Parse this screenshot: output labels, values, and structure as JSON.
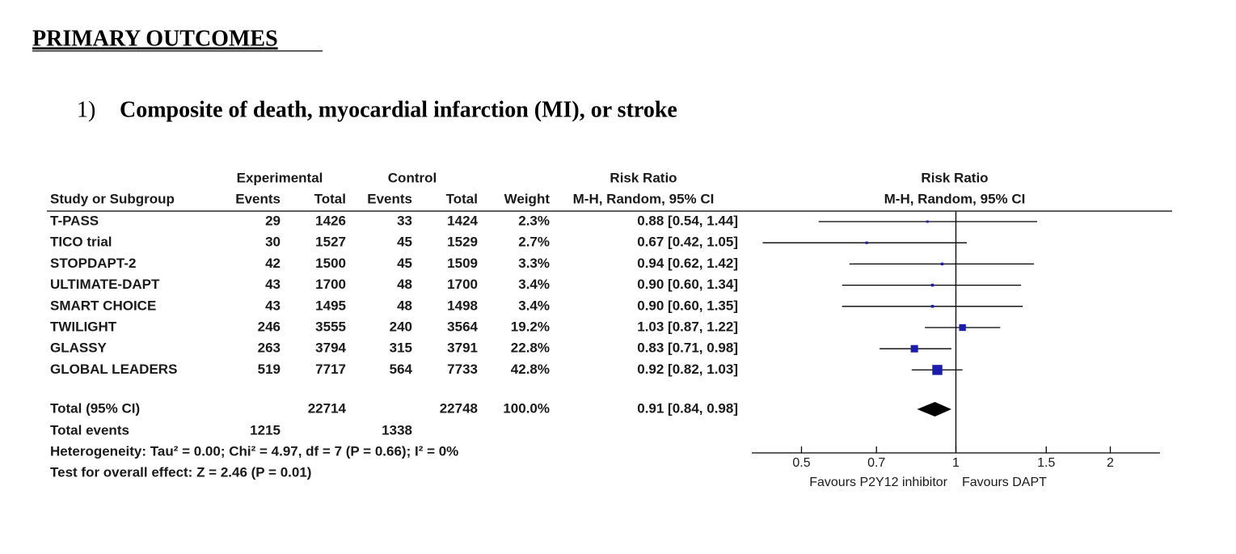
{
  "heading": "PRIMARY OUTCOMES",
  "item_number": "1)",
  "item_title": "Composite of death, myocardial infarction (MI), or stroke",
  "chart_data": {
    "type": "forest",
    "columns": {
      "study": "Study or Subgroup",
      "experimental": "Experimental",
      "control": "Control",
      "exp_events": "Events",
      "exp_total": "Total",
      "ctl_events": "Events",
      "ctl_total": "Total",
      "weight": "Weight",
      "effect": "Risk Ratio",
      "effect_method": "M-H, Random, 95% CI"
    },
    "plot_title": "Risk Ratio",
    "plot_subtitle": "M-H, Random, 95% CI",
    "studies": [
      {
        "name": "T-PASS",
        "exp_events": 29,
        "exp_total": 1426,
        "ctl_events": 33,
        "ctl_total": 1424,
        "weight": 2.3,
        "weight_label": "2.3%",
        "rr": 0.88,
        "ci_low": 0.54,
        "ci_high": 1.44,
        "ci_label": "0.88 [0.54, 1.44]"
      },
      {
        "name": "TICO trial",
        "exp_events": 30,
        "exp_total": 1527,
        "ctl_events": 45,
        "ctl_total": 1529,
        "weight": 2.7,
        "weight_label": "2.7%",
        "rr": 0.67,
        "ci_low": 0.42,
        "ci_high": 1.05,
        "ci_label": "0.67 [0.42, 1.05]"
      },
      {
        "name": "STOPDAPT-2",
        "exp_events": 42,
        "exp_total": 1500,
        "ctl_events": 45,
        "ctl_total": 1509,
        "weight": 3.3,
        "weight_label": "3.3%",
        "rr": 0.94,
        "ci_low": 0.62,
        "ci_high": 1.42,
        "ci_label": "0.94 [0.62, 1.42]"
      },
      {
        "name": "ULTIMATE-DAPT",
        "exp_events": 43,
        "exp_total": 1700,
        "ctl_events": 48,
        "ctl_total": 1700,
        "weight": 3.4,
        "weight_label": "3.4%",
        "rr": 0.9,
        "ci_low": 0.6,
        "ci_high": 1.34,
        "ci_label": "0.90 [0.60, 1.34]"
      },
      {
        "name": "SMART CHOICE",
        "exp_events": 43,
        "exp_total": 1495,
        "ctl_events": 48,
        "ctl_total": 1498,
        "weight": 3.4,
        "weight_label": "3.4%",
        "rr": 0.9,
        "ci_low": 0.6,
        "ci_high": 1.35,
        "ci_label": "0.90 [0.60, 1.35]"
      },
      {
        "name": "TWILIGHT",
        "exp_events": 246,
        "exp_total": 3555,
        "ctl_events": 240,
        "ctl_total": 3564,
        "weight": 19.2,
        "weight_label": "19.2%",
        "rr": 1.03,
        "ci_low": 0.87,
        "ci_high": 1.22,
        "ci_label": "1.03 [0.87, 1.22]"
      },
      {
        "name": "GLASSY",
        "exp_events": 263,
        "exp_total": 3794,
        "ctl_events": 315,
        "ctl_total": 3791,
        "weight": 22.8,
        "weight_label": "22.8%",
        "rr": 0.83,
        "ci_low": 0.71,
        "ci_high": 0.98,
        "ci_label": "0.83 [0.71, 0.98]"
      },
      {
        "name": "GLOBAL LEADERS",
        "exp_events": 519,
        "exp_total": 7717,
        "ctl_events": 564,
        "ctl_total": 7733,
        "weight": 42.8,
        "weight_label": "42.8%",
        "rr": 0.92,
        "ci_low": 0.82,
        "ci_high": 1.03,
        "ci_label": "0.92 [0.82, 1.03]"
      }
    ],
    "total": {
      "name": "Total (95% CI)",
      "exp_total": 22714,
      "ctl_total": 22748,
      "weight_label": "100.0%",
      "rr": 0.91,
      "ci_low": 0.84,
      "ci_high": 0.98,
      "ci_label": "0.91 [0.84, 0.98]"
    },
    "total_events": {
      "name": "Total events",
      "exp_events": 1215,
      "ctl_events": 1338
    },
    "heterogeneity": "Heterogeneity: Tau² = 0.00; Chi² = 4.97, df = 7 (P = 0.66); I² = 0%",
    "overall_effect": "Test for overall effect: Z = 2.46 (P = 0.01)",
    "xscale": "log",
    "xlim": [
      0.4,
      2.5
    ],
    "xticks": [
      0.5,
      0.7,
      1,
      1.5,
      2
    ],
    "reference": 1,
    "box_color": "#1c1cb0",
    "diamond_color": "#000000",
    "favours_left": "Favours P2Y12 inhibitor",
    "favours_right": "Favours DAPT"
  }
}
